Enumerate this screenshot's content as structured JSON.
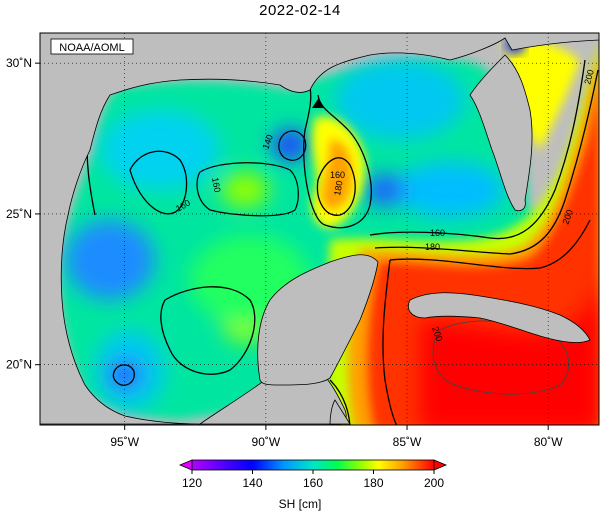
{
  "title": "2022-02-14",
  "credit": "NOAA/AOML",
  "map": {
    "lon_range": [
      -98,
      -78.2
    ],
    "lat_range": [
      18,
      31
    ],
    "lon_ticks": [
      {
        "value": -95,
        "label": "95˚W"
      },
      {
        "value": -90,
        "label": "90˚W"
      },
      {
        "value": -85,
        "label": "85˚W"
      },
      {
        "value": -80,
        "label": "80˚W"
      }
    ],
    "lat_ticks": [
      {
        "value": 30,
        "label": "30˚N"
      },
      {
        "value": 25,
        "label": "25˚N"
      },
      {
        "value": 20,
        "label": "20˚N"
      }
    ],
    "gridlines": "dotted",
    "land_color": "#bebebe",
    "contour_labels": [
      "140",
      "160",
      "160",
      "160",
      "180",
      "160",
      "180",
      "200",
      "200",
      "200"
    ]
  },
  "colorbar": {
    "label": "SH [cm]",
    "min": 120,
    "max": 200,
    "tick_values": [
      120,
      140,
      160,
      180,
      200
    ],
    "tick_labels": [
      "120",
      "140",
      "160",
      "180",
      "200"
    ],
    "colors": [
      "#b400ff",
      "#0000ff",
      "#0096ff",
      "#00e6e6",
      "#00ff64",
      "#96ff00",
      "#ffff00",
      "#ffa000",
      "#ff3200",
      "#ff0000"
    ]
  }
}
